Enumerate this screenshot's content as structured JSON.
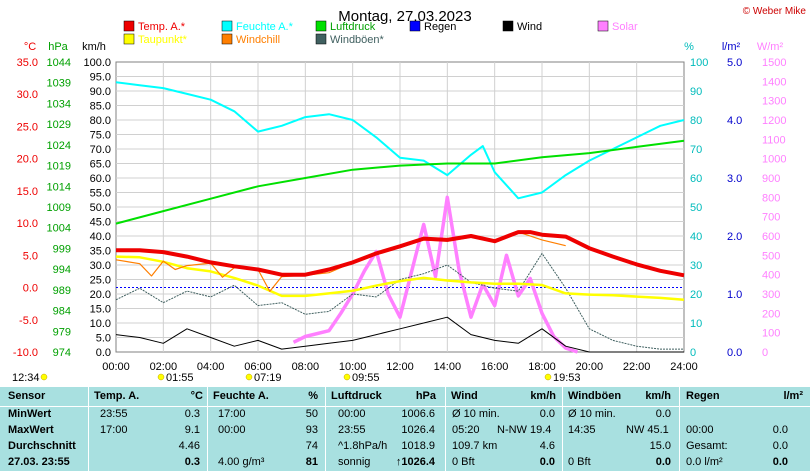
{
  "title": "Montag, 27.03.2023",
  "copyright": "© Weber Mike",
  "colors": {
    "temp": "#ee0000",
    "dew": "#ffff00",
    "humidity": "#00ffff",
    "windchill": "#ff7f00",
    "pressure": "#00e000",
    "gusts": "#406060",
    "rain": "#0000ff",
    "wind": "#000000",
    "solar": "#ff80ff",
    "table_bg": "#a8e0e0"
  },
  "legend": [
    {
      "label": "Temp. A.*",
      "color": "#ee0000"
    },
    {
      "label": "Feuchte A.*",
      "color": "#00ffff"
    },
    {
      "label": "Luftdruck",
      "color": "#00e000"
    },
    {
      "label": "Regen",
      "color": "#0000ff"
    },
    {
      "label": "Wind",
      "color": "#000000"
    },
    {
      "label": "Solar",
      "color": "#ff80ff"
    },
    {
      "label": "Taupunkt*",
      "color": "#ffff00"
    },
    {
      "label": "Windchill",
      "color": "#ff7f00"
    },
    {
      "label": "Windböen*",
      "color": "#406060"
    }
  ],
  "axes_units": {
    "temp": "°C",
    "pressure": "hPa",
    "wind": "km/h",
    "humidity": "%",
    "rain": "l/m²",
    "solar": "W/m²"
  },
  "chart_data": {
    "type": "line",
    "title": "Montag, 27.03.2023",
    "x_range": [
      0,
      24
    ],
    "x_ticks": [
      "00:00",
      "02:00",
      "04:00",
      "06:00",
      "08:00",
      "10:00",
      "12:00",
      "14:00",
      "16:00",
      "18:00",
      "20:00",
      "22:00",
      "24:00"
    ],
    "y_axes": {
      "temp": {
        "range": [
          -10,
          35
        ],
        "ticks": [
          "35.0",
          "30.0",
          "25.0",
          "20.0",
          "15.0",
          "10.0",
          "5.0",
          "0.0",
          "-5.0",
          "-10.0"
        ]
      },
      "pressure": {
        "range": [
          974,
          1044
        ],
        "ticks": [
          "1044",
          "1039",
          "1034",
          "1029",
          "1024",
          "1019",
          "1014",
          "1009",
          "1004",
          "999",
          "994",
          "989",
          "984",
          "979",
          "974"
        ]
      },
      "wind": {
        "range": [
          0,
          100
        ],
        "ticks": [
          "100.0",
          "95.0",
          "90.0",
          "85.0",
          "80.0",
          "75.0",
          "70.0",
          "65.0",
          "60.0",
          "55.0",
          "50.0",
          "45.0",
          "40.0",
          "35.0",
          "30.0",
          "25.0",
          "20.0",
          "15.0",
          "10.0",
          "5.0",
          "0.0"
        ]
      },
      "humidity": {
        "range": [
          0,
          100
        ],
        "ticks": [
          "100",
          "90",
          "80",
          "70",
          "60",
          "50",
          "40",
          "30",
          "20",
          "10",
          "0"
        ]
      },
      "rain": {
        "range": [
          0,
          5
        ],
        "ticks": [
          "5.0",
          "4.0",
          "3.0",
          "2.0",
          "1.0",
          "0.0"
        ]
      },
      "solar": {
        "range": [
          0,
          1500
        ],
        "ticks": [
          "1500",
          "1400",
          "1300",
          "1200",
          "1100",
          "1000",
          "900",
          "800",
          "700",
          "600",
          "500",
          "400",
          "300",
          "200",
          "100",
          "0"
        ]
      }
    },
    "grid": true,
    "series": [
      {
        "name": "Temp. A.*",
        "axis": "temp",
        "x": [
          0,
          1,
          2,
          3,
          4,
          5,
          6,
          7,
          8,
          9,
          10,
          11,
          12,
          13,
          14,
          15,
          16,
          17,
          17.5,
          18,
          19,
          20,
          21,
          22,
          23,
          24
        ],
        "y": [
          5.8,
          5.8,
          5.5,
          4.8,
          3.9,
          3.3,
          2.8,
          2.0,
          2.0,
          2.8,
          3.9,
          5.3,
          6.4,
          7.6,
          7.4,
          8.0,
          7.2,
          8.6,
          8.6,
          8.2,
          7.9,
          6.1,
          4.8,
          3.6,
          2.6,
          1.9
        ]
      },
      {
        "name": "Taupunkt*",
        "axis": "temp",
        "x": [
          0,
          1,
          2,
          3,
          4,
          5,
          6,
          7,
          8,
          9,
          10,
          11,
          12,
          13,
          14,
          15,
          16,
          17,
          18,
          19,
          20,
          21,
          22,
          23,
          24
        ],
        "y": [
          4.8,
          4.7,
          4.0,
          3.0,
          2.5,
          1.5,
          0.3,
          -1.3,
          -1.3,
          -0.9,
          -0.5,
          0.3,
          1.0,
          1.5,
          1.1,
          0.8,
          0.6,
          0.6,
          0.4,
          -0.9,
          -1.1,
          -1.2,
          -1.4,
          -1.6,
          -1.9
        ]
      },
      {
        "name": "Feuchte A.*",
        "axis": "humidity",
        "x": [
          0,
          1,
          2,
          3,
          4,
          5,
          6,
          7,
          8,
          9,
          10,
          11,
          12,
          13,
          14,
          15,
          15.5,
          16,
          17,
          18,
          19,
          20,
          21,
          22,
          23,
          24
        ],
        "y": [
          93,
          92,
          91,
          89,
          87,
          83,
          76,
          78,
          81,
          82,
          80,
          74,
          67,
          66,
          61,
          68,
          71,
          62,
          53,
          55,
          61,
          66,
          70,
          74,
          78,
          80
        ]
      },
      {
        "name": "Luftdruck",
        "axis": "pressure",
        "x": [
          0,
          2,
          4,
          6,
          8,
          10,
          12,
          14,
          16,
          18,
          20,
          22,
          24
        ],
        "y": [
          1005,
          1008,
          1011,
          1014,
          1016,
          1018,
          1019,
          1019.5,
          1019.5,
          1021,
          1022,
          1023.5,
          1025
        ]
      },
      {
        "name": "Windchill",
        "axis": "temp",
        "x": [
          0,
          1,
          1.5,
          2,
          2.5,
          3,
          4,
          4.5,
          5,
          6,
          6.5,
          7,
          8,
          9,
          10,
          11,
          12,
          13,
          14,
          15,
          16,
          17,
          18,
          19
        ],
        "y": [
          4.3,
          3.7,
          1.8,
          4.1,
          2.8,
          3.4,
          3.8,
          1.6,
          3.1,
          2.8,
          -0.6,
          1.7,
          1.9,
          2.3,
          3.9,
          5.3,
          6.2,
          7.4,
          7.2,
          7.8,
          7.1,
          8.6,
          7.4,
          6.5
        ]
      },
      {
        "name": "Windböen*",
        "axis": "wind",
        "x": [
          0,
          1,
          2,
          3,
          4,
          5,
          6,
          7,
          8,
          9,
          10,
          11,
          12,
          13,
          14,
          15,
          16,
          17,
          18,
          19,
          20,
          21,
          22,
          23,
          24
        ],
        "y": [
          18,
          22,
          17,
          21,
          19,
          23,
          16,
          17,
          13,
          14,
          20,
          19,
          25,
          27,
          30,
          24,
          22,
          21,
          34,
          22,
          8,
          4,
          2,
          1,
          1
        ]
      },
      {
        "name": "Wind",
        "axis": "wind",
        "x": [
          0,
          1,
          2,
          3,
          4,
          5,
          6,
          7,
          8,
          9,
          10,
          11,
          12,
          13,
          14,
          15,
          16,
          17,
          18,
          19,
          20,
          21,
          22,
          23,
          24
        ],
        "y": [
          6,
          5,
          3,
          8,
          5,
          2,
          4,
          1,
          2,
          3,
          4,
          6,
          8,
          10,
          12,
          6,
          4,
          3,
          8,
          2,
          0,
          0,
          0,
          0,
          0
        ]
      },
      {
        "name": "Solar",
        "axis": "solar",
        "x": [
          7.5,
          8,
          9,
          9.5,
          10,
          10.5,
          11,
          11.5,
          12,
          12.5,
          13,
          13.5,
          14,
          14.5,
          15,
          15.5,
          16,
          16.5,
          17,
          17.5,
          18,
          18.5,
          19,
          19.5
        ],
        "y": [
          50,
          80,
          110,
          200,
          300,
          420,
          520,
          300,
          180,
          420,
          660,
          390,
          800,
          420,
          180,
          350,
          240,
          500,
          290,
          380,
          200,
          80,
          20,
          0
        ]
      }
    ]
  },
  "markers": {
    "sunrise_left": "12:34",
    "sunrise": "01:55",
    "time2": "07:19",
    "time3": "09:55",
    "sunset": "19:53"
  },
  "table": {
    "headers": [
      "Sensor",
      "Temp. A.",
      "°C",
      "Feuchte A.",
      "%",
      "Luftdruck",
      "hPa",
      "Wind",
      "km/h",
      "Windböen",
      "km/h",
      "Regen",
      "l/m²"
    ],
    "rows": [
      {
        "label": "MinWert",
        "temp_time": "23:55",
        "temp_val": "0.3",
        "hum_time": "17:00",
        "hum_val": "50",
        "press_time": "00:00",
        "press_val": "1006.6",
        "wind_a": "Ø 10 min.",
        "wind_val": "0.0",
        "gust_a": "Ø 10 min.",
        "gust_val": "0.0",
        "rain_a": "",
        "rain_val": ""
      },
      {
        "label": "MaxWert",
        "temp_time": "17:00",
        "temp_val": "9.1",
        "hum_time": "00:00",
        "hum_val": "93",
        "press_time": "23:55",
        "press_val": "1026.4",
        "wind_a": "05:20",
        "wind_b": "N-NW 19.4",
        "wind_val": "",
        "gust_a": "14:35",
        "gust_b": "NW 45.1",
        "gust_val": "",
        "rain_a": "00:00",
        "rain_val": "0.0"
      },
      {
        "label": "Durchschnitt",
        "temp_time": "",
        "temp_val": "4.46",
        "hum_time": "",
        "hum_val": "74",
        "press_time": "^1.8hPa/h",
        "press_val": "1018.9",
        "wind_a": "109.7 km",
        "wind_val": "4.6",
        "gust_a": "",
        "gust_val": "15.0",
        "rain_a": "Gesamt:",
        "rain_val": "0.0"
      },
      {
        "label": "27.03. 23:55",
        "temp_time": "",
        "temp_val": "0.3",
        "hum_time": "4.00 g/m³",
        "hum_val": "81",
        "press_time": "sonnig",
        "press_val": "↑1026.4",
        "wind_a": "0 Bft",
        "wind_val": "0.0",
        "gust_a": "0 Bft",
        "gust_val": "0.0",
        "rain_a": "0.0 l/m²",
        "rain_val": "0.0"
      }
    ]
  }
}
